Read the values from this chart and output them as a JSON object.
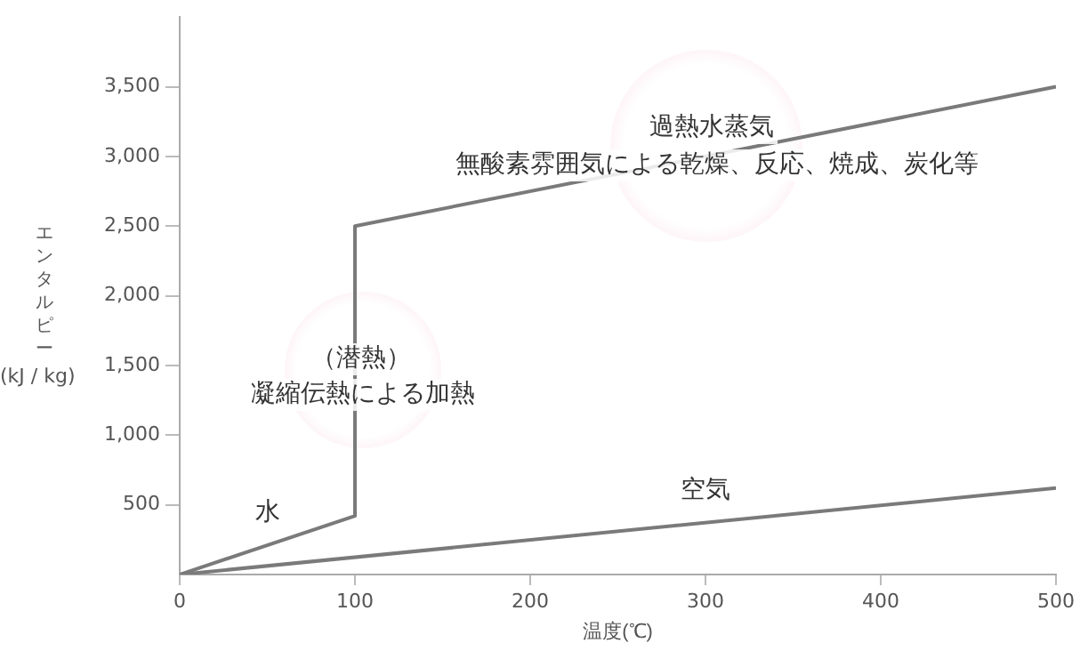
{
  "chart_data": {
    "type": "line",
    "xlabel": "温度(℃)",
    "ylabel": "エンタルピー\n(kJ / kg)",
    "xlim": [
      0,
      500
    ],
    "xticks": [
      0,
      100,
      200,
      300,
      400,
      500
    ],
    "ylim": [
      0,
      4000
    ],
    "yticks": [
      {
        "value": 500,
        "label": "500"
      },
      {
        "value": 1000,
        "label": "1,000"
      },
      {
        "value": 1500,
        "label": "1,500"
      },
      {
        "value": 2000,
        "label": "2,000"
      },
      {
        "value": 2500,
        "label": "2,500"
      },
      {
        "value": 3000,
        "label": "3,000"
      },
      {
        "value": 3500,
        "label": "3,500"
      }
    ],
    "series": [
      {
        "name": "水",
        "color": "#7a7a7a",
        "x": [
          0,
          100,
          100,
          500
        ],
        "values": [
          0,
          420,
          2500,
          3500
        ]
      },
      {
        "name": "空気",
        "color": "#7a7a7a",
        "x": [
          0,
          500
        ],
        "values": [
          0,
          620
        ]
      }
    ],
    "annotations": [
      "過熱水蒸気",
      "無酸素雰囲気による乾燥、反応、焼成、炭化等",
      "（潜熱）",
      "凝縮伝熱による加熱"
    ],
    "grid": false,
    "legend": false,
    "marker": "none",
    "line_style": "solid"
  }
}
